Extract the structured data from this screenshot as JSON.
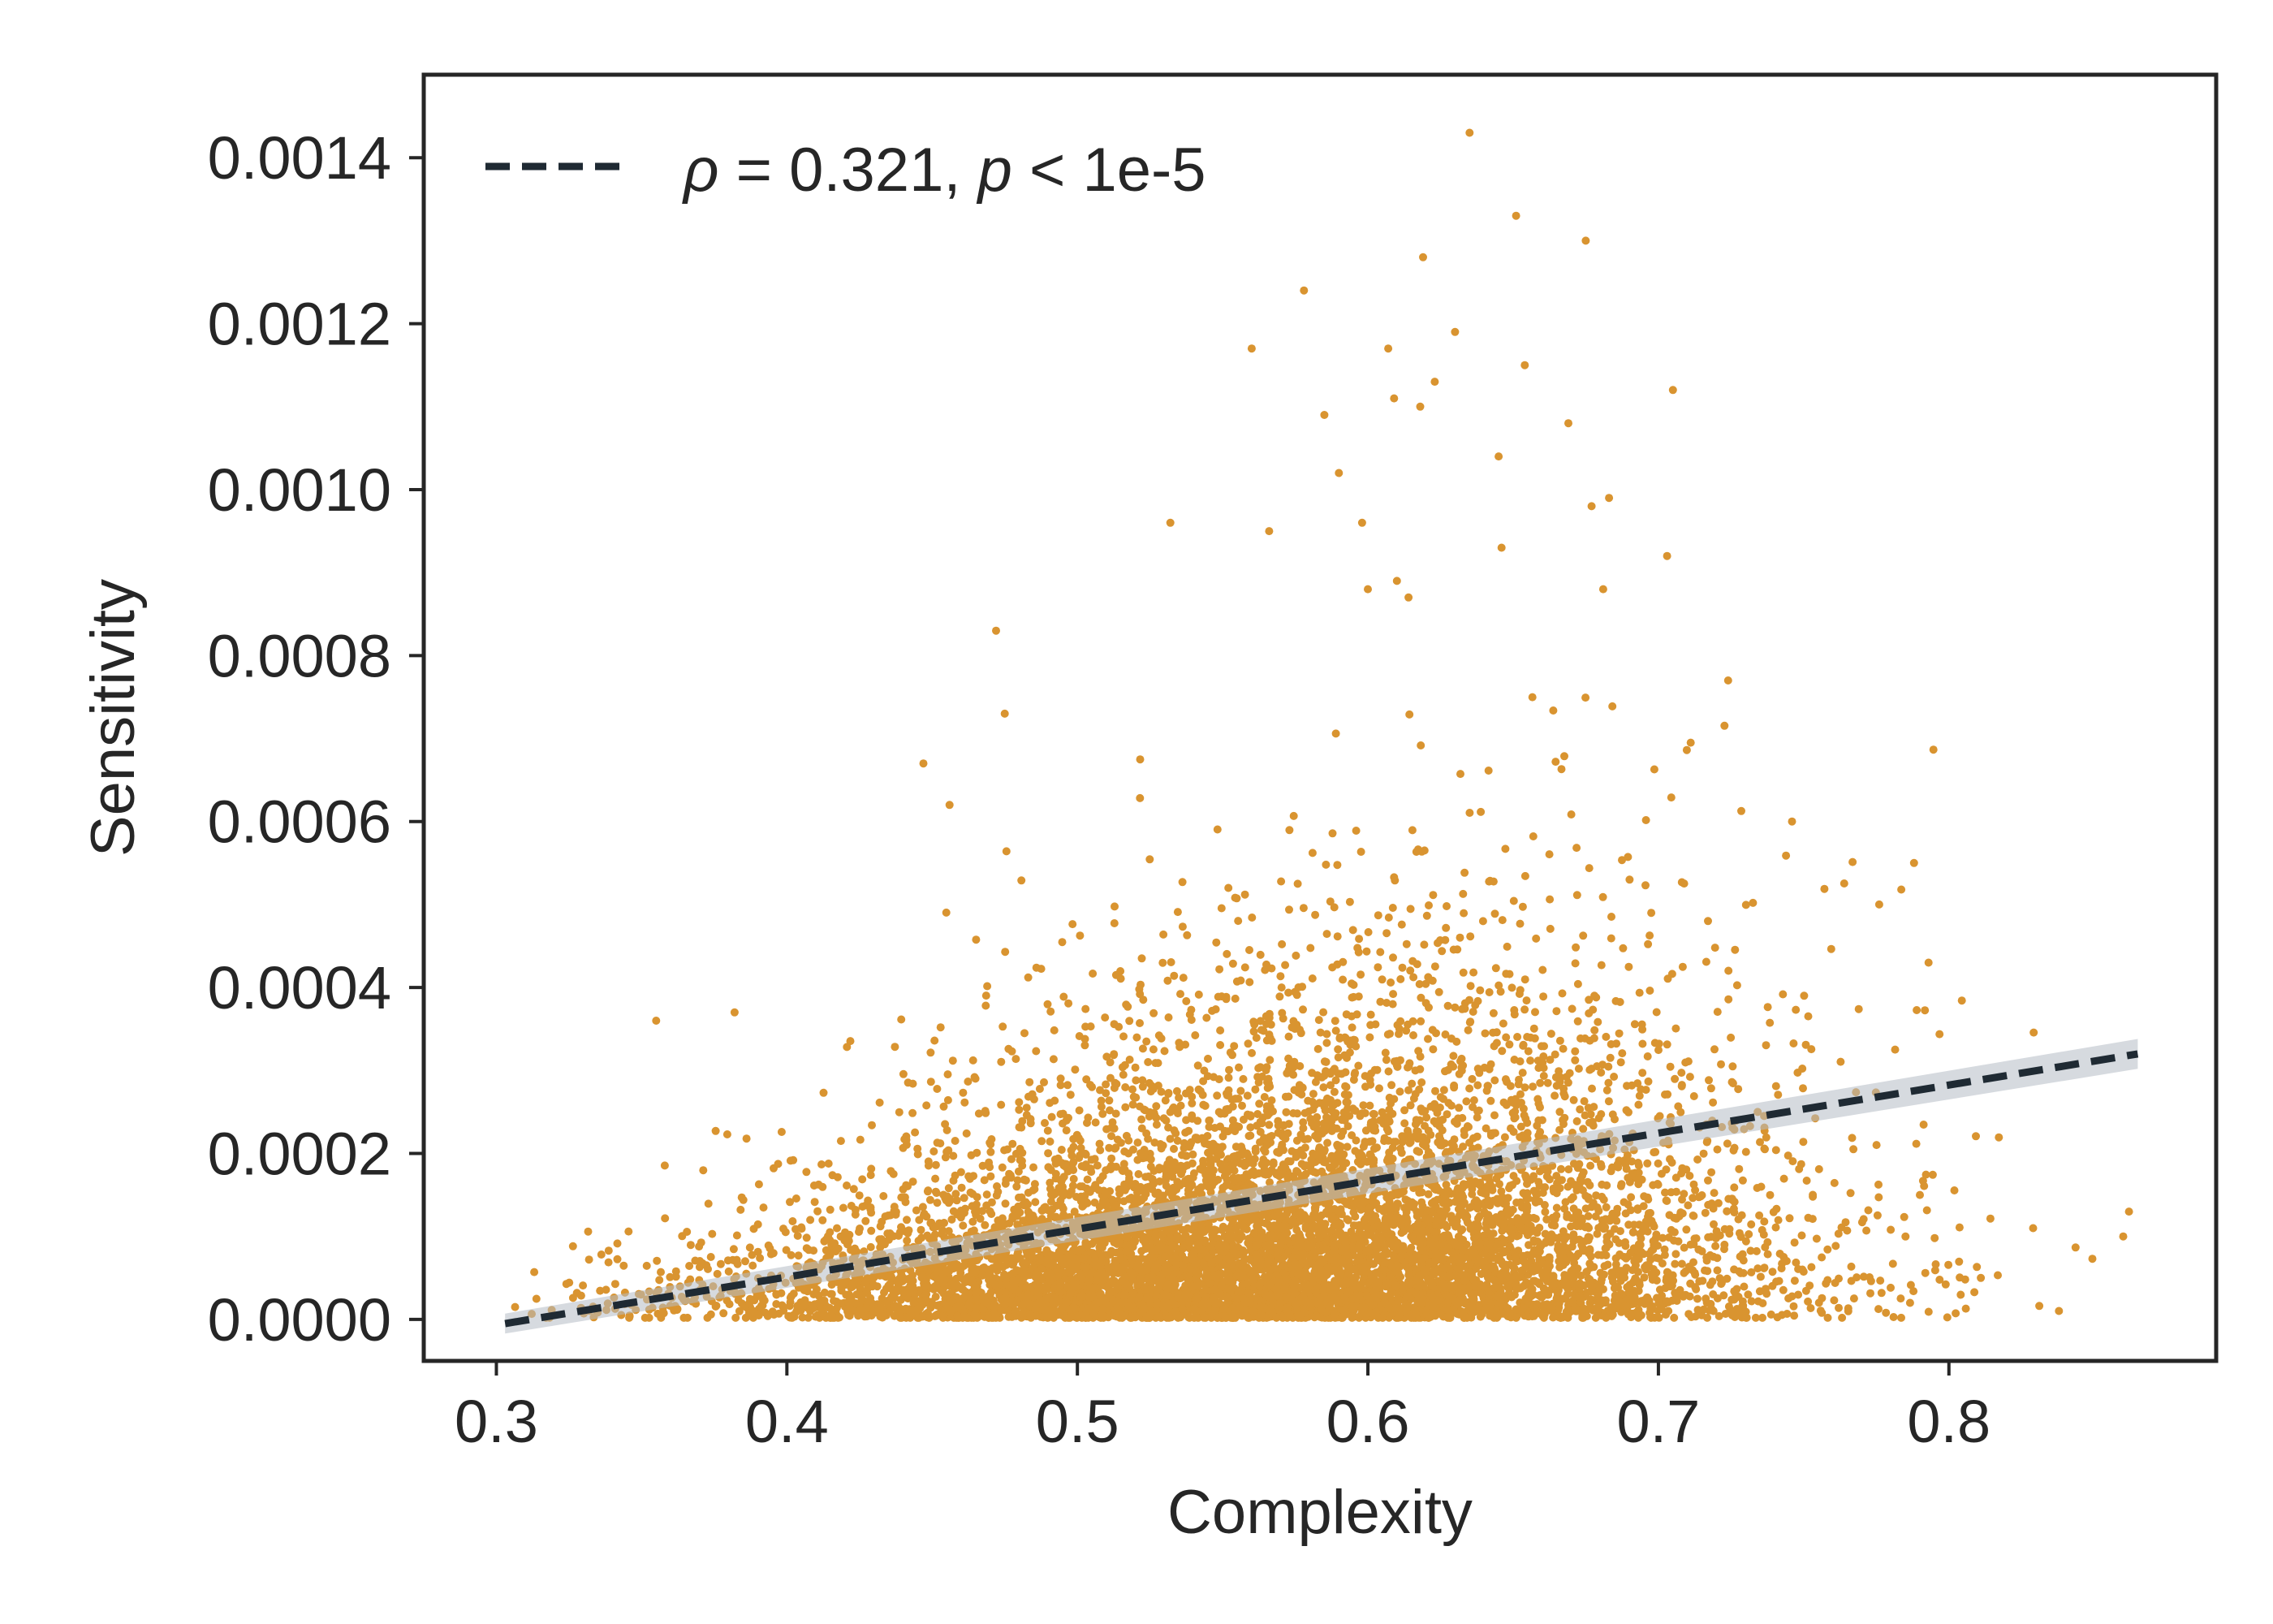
{
  "chart_data": {
    "type": "scatter",
    "xlabel": "Complexity",
    "ylabel": "Sensitivity",
    "xlim": [
      0.275,
      0.892
    ],
    "ylim": [
      -5e-05,
      0.0015
    ],
    "xticks": [
      0.3,
      0.4,
      0.5,
      0.6,
      0.7,
      0.8
    ],
    "xtick_labels": [
      "0.3",
      "0.4",
      "0.5",
      "0.6",
      "0.7",
      "0.8"
    ],
    "yticks": [
      0.0,
      0.0002,
      0.0004,
      0.0006,
      0.0008,
      0.001,
      0.0012,
      0.0014
    ],
    "ytick_labels": [
      "0.0000",
      "0.0002",
      "0.0004",
      "0.0006",
      "0.0008",
      "0.0010",
      "0.0012",
      "0.0014"
    ],
    "grid": false,
    "legend_placement": "top-left",
    "legend": {
      "prefix_symbol": "ρ",
      "mid_text": " = 0.321, ",
      "p_symbol": "p",
      "suffix_text": " < 1e-5"
    },
    "colors": {
      "points": "#d99430",
      "fit_line": "#1f2a33",
      "band": "#b5bcc4",
      "axes": "#262626"
    },
    "fit": {
      "x": [
        0.303,
        0.865
      ],
      "y": [
        -5e-06,
        0.00032
      ],
      "band_halfwidth_start": 1.2e-05,
      "band_halfwidth_end": 1.8e-05
    },
    "series": [
      {
        "x": [
          0.635,
          0.651,
          0.675,
          0.578,
          0.619,
          0.56,
          0.63,
          0.607,
          0.654,
          0.705,
          0.609,
          0.618,
          0.585,
          0.669,
          0.59,
          0.645,
          0.623,
          0.677,
          0.683,
          0.532,
          0.566,
          0.598,
          0.703,
          0.646,
          0.614,
          0.6,
          0.61,
          0.681,
          0.472,
          0.724,
          0.475,
          0.447,
          0.456,
          0.746,
          0.788,
          0.776,
          0.793,
          0.355,
          0.382,
          0.862,
          0.829,
          0.811,
          0.79,
          0.86
        ],
        "y": [
          0.00143,
          0.00133,
          0.0013,
          0.00124,
          0.00128,
          0.00117,
          0.00119,
          0.00117,
          0.00115,
          0.00112,
          0.00111,
          0.0011,
          0.00109,
          0.00108,
          0.00102,
          0.00104,
          0.00113,
          0.00098,
          0.00099,
          0.00096,
          0.00095,
          0.00096,
          0.00092,
          0.00093,
          0.00087,
          0.00088,
          0.00089,
          0.00088,
          0.00083,
          0.00077,
          0.00073,
          0.00067,
          0.00062,
          0.0006,
          0.00055,
          0.0005,
          0.00043,
          0.00036,
          0.00037,
          0.00013,
          0.00011,
          5e-05,
          0.00015,
          0.0001
        ]
      }
    ],
    "generated_points": {
      "count": 9000,
      "x_center": 0.565,
      "x_spread": 0.085,
      "x_min": 0.305,
      "x_max": 0.86,
      "y_scale_base": 4e-05,
      "y_scale_slope": 0.0006
    }
  }
}
